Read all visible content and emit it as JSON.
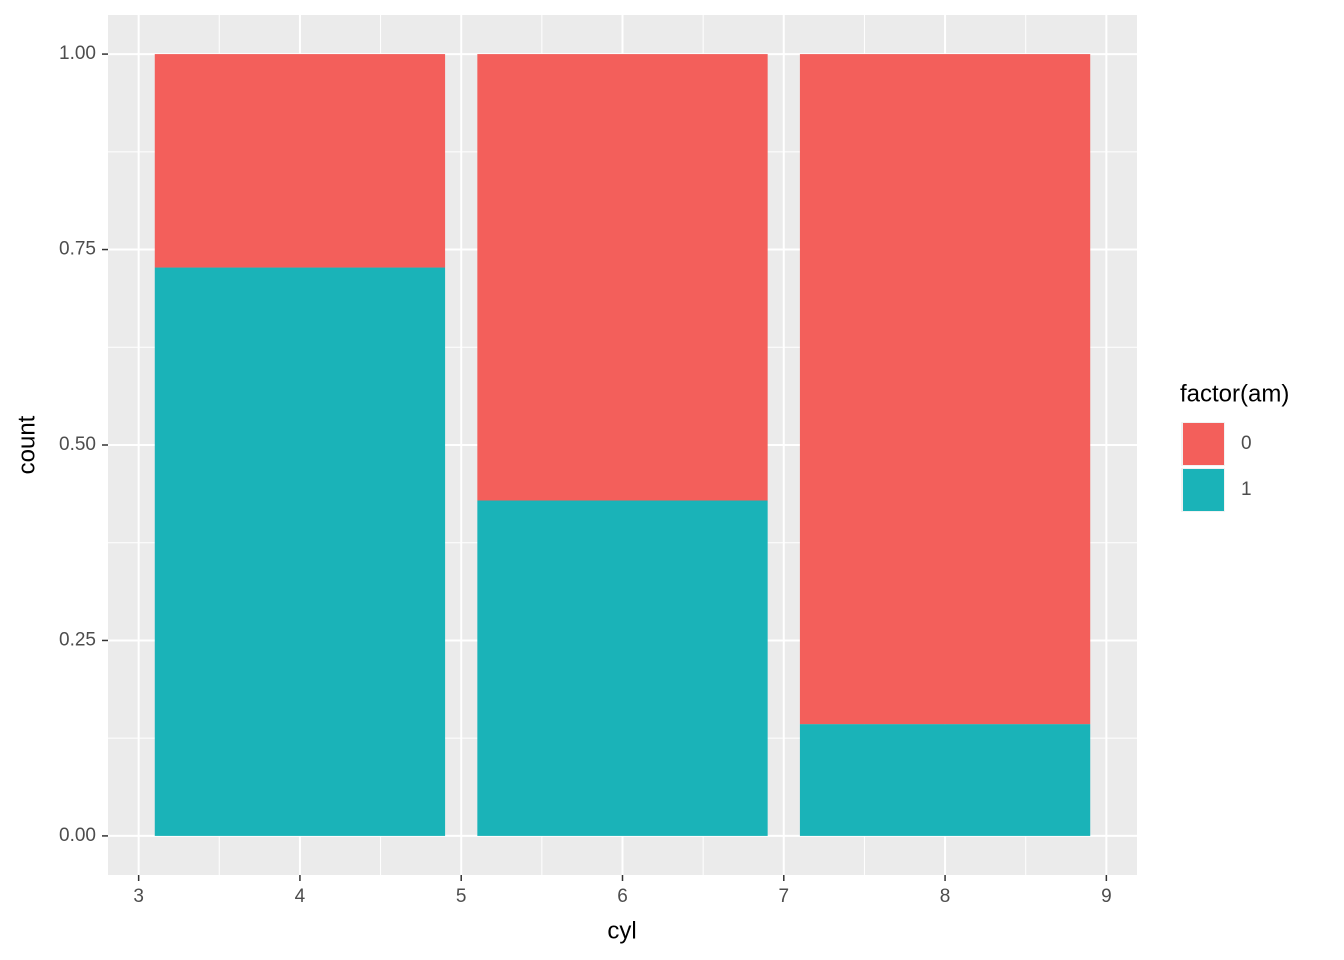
{
  "chart_data": {
    "type": "bar",
    "stacked": true,
    "x_label": "cyl",
    "y_label": "count",
    "legend_title": "factor(am)",
    "legend_position": "right",
    "x": [
      4,
      6,
      8
    ],
    "series": [
      {
        "name": "0",
        "color": "#F35F5B",
        "values": [
          0.273,
          0.571,
          0.857
        ]
      },
      {
        "name": "1",
        "color": "#1AB3B8",
        "values": [
          0.727,
          0.429,
          0.143
        ]
      }
    ],
    "xlim": [
      2.81,
      9.19
    ],
    "xticks": [
      3,
      4,
      5,
      6,
      7,
      8,
      9
    ],
    "ylim": [
      -0.05,
      1.05
    ],
    "yticks": [
      {
        "value": 0,
        "label": "0.00"
      },
      {
        "value": 0.25,
        "label": "0.25"
      },
      {
        "value": 0.5,
        "label": "0.50"
      },
      {
        "value": 0.75,
        "label": "0.75"
      },
      {
        "value": 1,
        "label": "1.00"
      }
    ],
    "grid": true
  }
}
